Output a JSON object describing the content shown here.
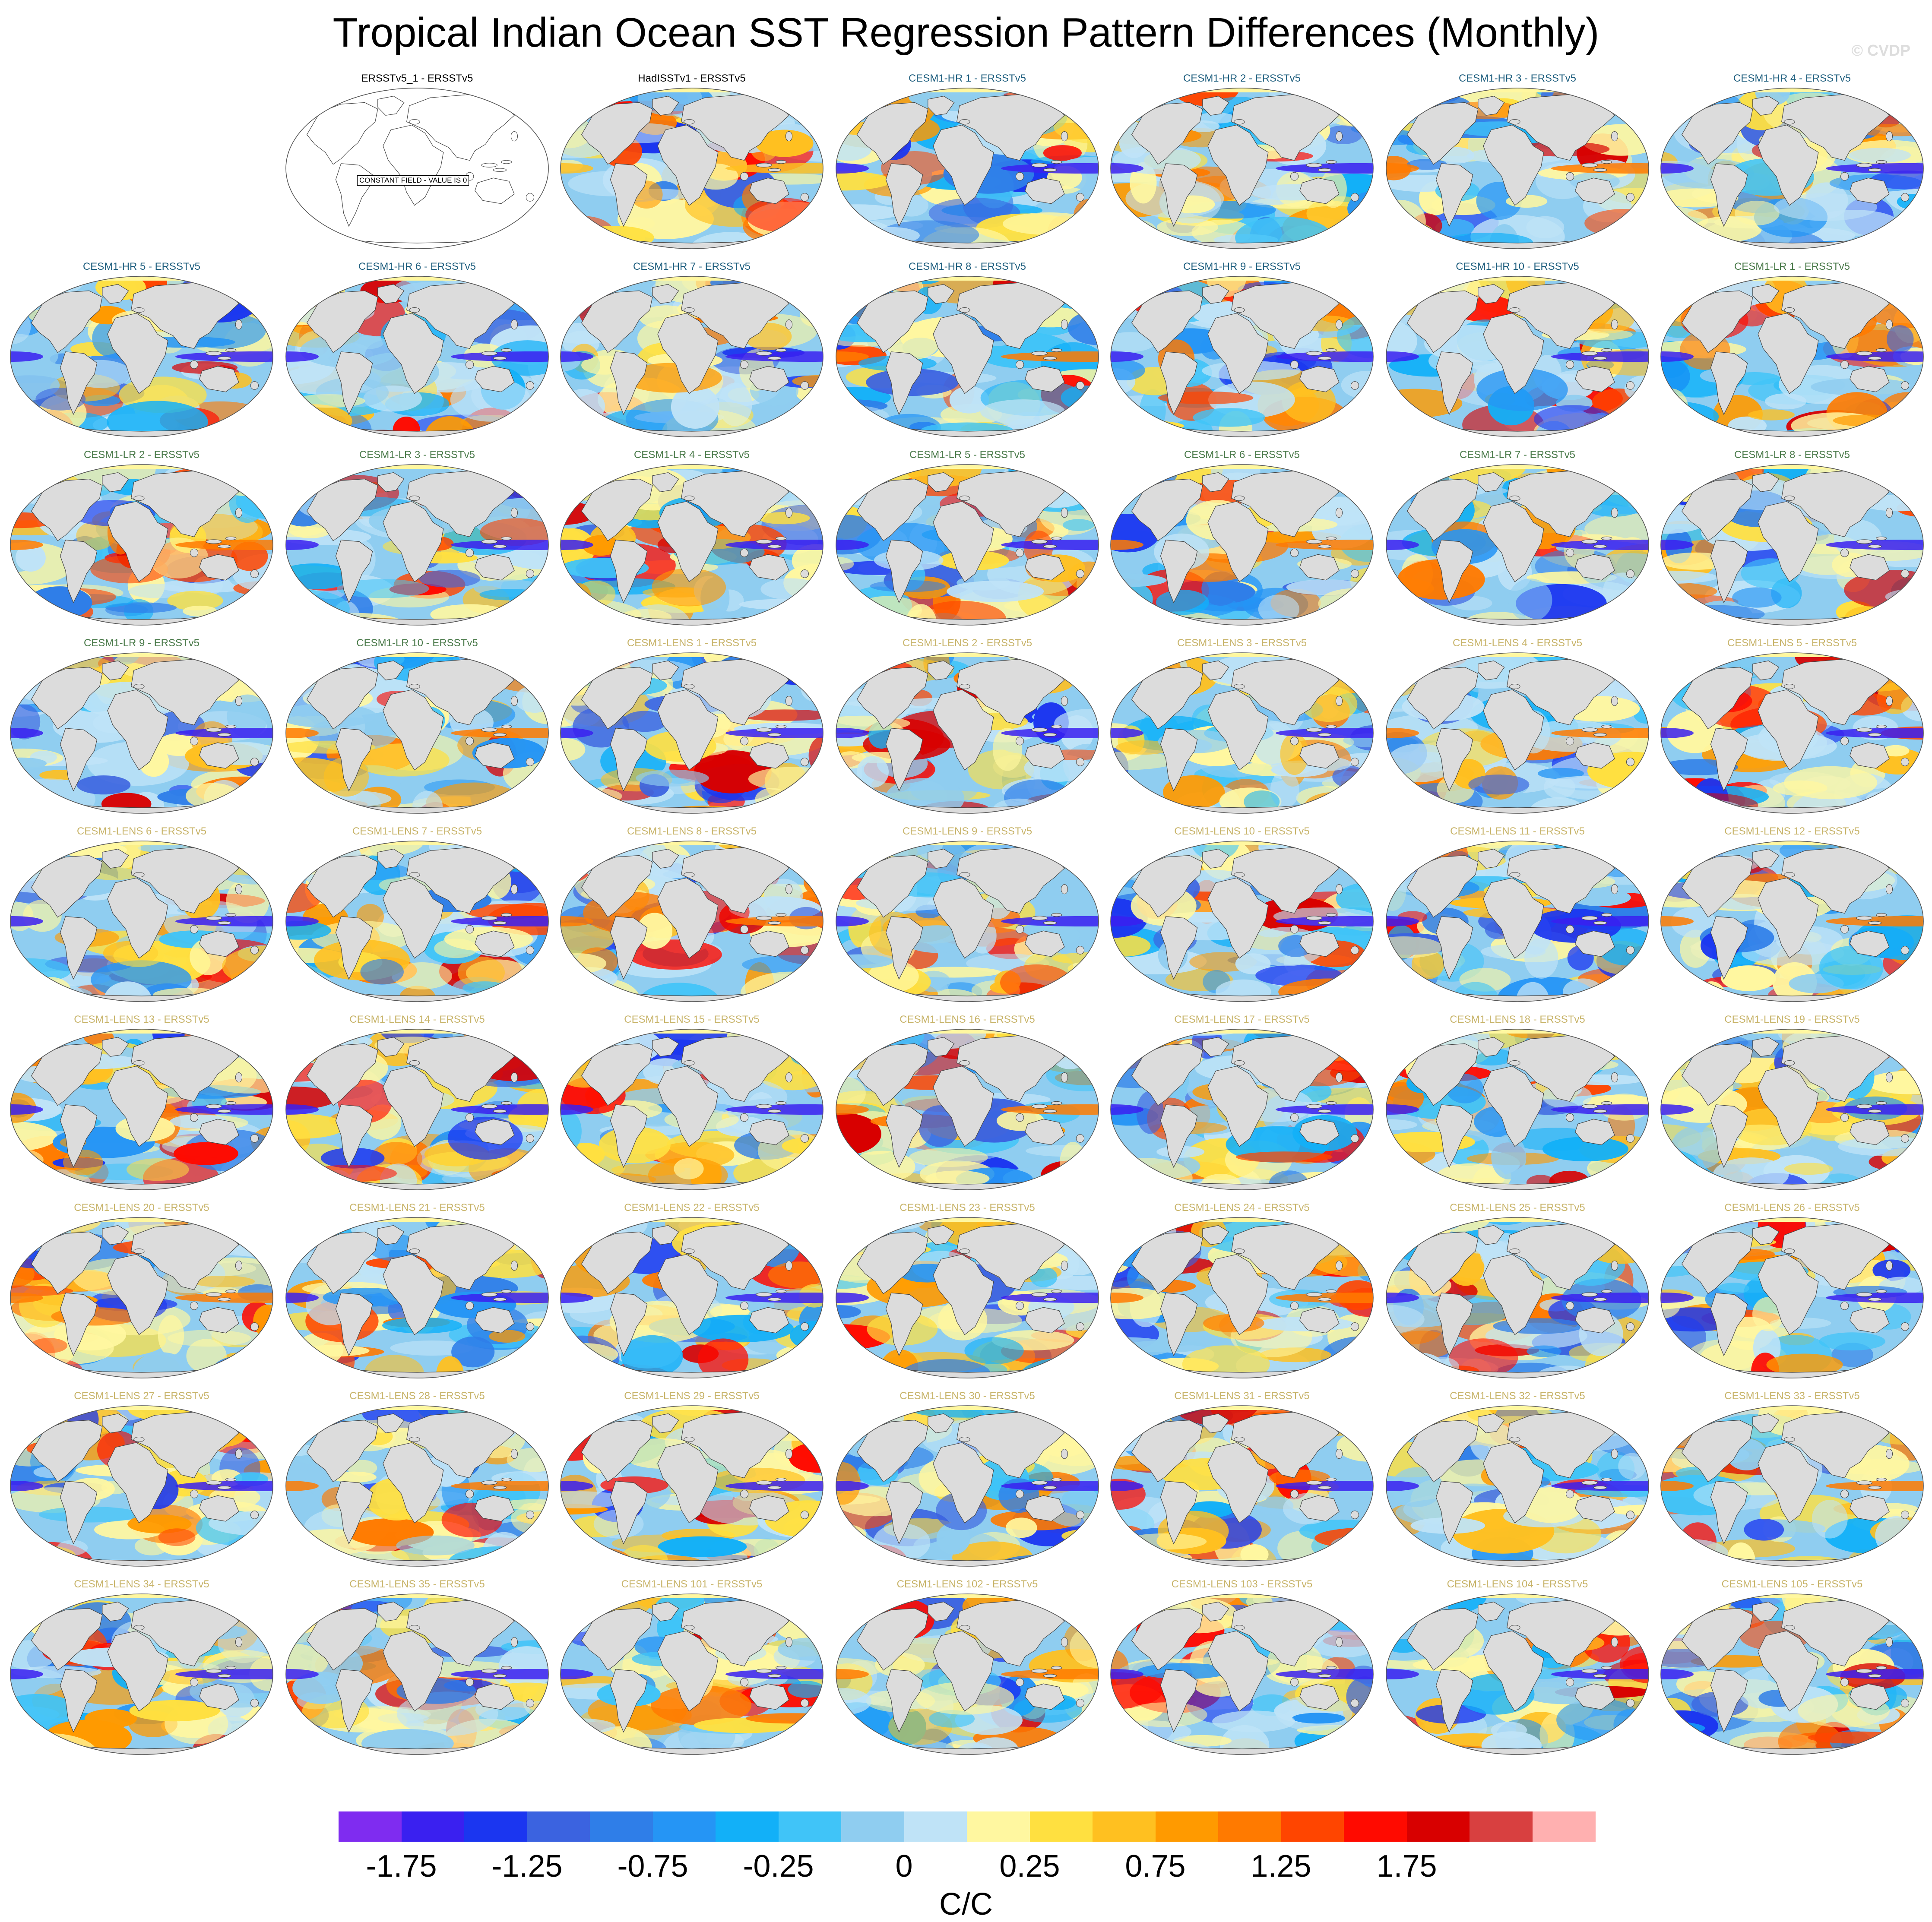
{
  "title": "Tropical Indian Ocean SST Regression Pattern Differences (Monthly)",
  "watermark": "© CVDP",
  "colors": {
    "obs_title": "#000000",
    "hr_title": "#1f5f7f",
    "lr_title": "#4a7a4a",
    "lens_title": "#c8b46a",
    "land": "#dcdcdc",
    "constant_field_bg": "#ffffff"
  },
  "colorbar": {
    "label": "C/C",
    "colors": [
      "#7f2cf0",
      "#3a20f0",
      "#1b36f0",
      "#3b63e0",
      "#2f7ee8",
      "#2595f5",
      "#12b0f8",
      "#40c4f8",
      "#8fcdf0",
      "#bfe3f7",
      "#fff7a0",
      "#ffe040",
      "#ffc020",
      "#ff9a00",
      "#ff7a00",
      "#ff4500",
      "#ff0a00",
      "#d80000",
      "#d84040",
      "#ffb0b0"
    ],
    "tick_labels": [
      "-1.75",
      "-1.25",
      "-0.75",
      "-0.25",
      "0",
      "0.25",
      "0.75",
      "1.25",
      "1.75"
    ],
    "tick_boundary_index": [
      1,
      3,
      5,
      7,
      9,
      11,
      13,
      15,
      17
    ]
  },
  "panels": [
    {
      "label": "ERSSTv5_1 - ERSSTv5",
      "group": "obs",
      "constant": true,
      "note": "CONSTANT FIELD - VALUE IS 0"
    },
    {
      "label": "HadISSTv1 - ERSSTv5",
      "group": "obs"
    },
    {
      "label": "CESM1-HR 1 - ERSSTv5",
      "group": "hr"
    },
    {
      "label": "CESM1-HR 2 - ERSSTv5",
      "group": "hr"
    },
    {
      "label": "CESM1-HR 3 - ERSSTv5",
      "group": "hr"
    },
    {
      "label": "CESM1-HR 4 - ERSSTv5",
      "group": "hr"
    },
    {
      "label": "CESM1-HR 5 - ERSSTv5",
      "group": "hr"
    },
    {
      "label": "CESM1-HR 6 - ERSSTv5",
      "group": "hr"
    },
    {
      "label": "CESM1-HR 7 - ERSSTv5",
      "group": "hr"
    },
    {
      "label": "CESM1-HR 8 - ERSSTv5",
      "group": "hr"
    },
    {
      "label": "CESM1-HR 9 - ERSSTv5",
      "group": "hr"
    },
    {
      "label": "CESM1-HR 10 - ERSSTv5",
      "group": "hr"
    },
    {
      "label": "CESM1-LR 1 - ERSSTv5",
      "group": "lr"
    },
    {
      "label": "CESM1-LR 2 - ERSSTv5",
      "group": "lr"
    },
    {
      "label": "CESM1-LR 3 - ERSSTv5",
      "group": "lr"
    },
    {
      "label": "CESM1-LR 4 - ERSSTv5",
      "group": "lr"
    },
    {
      "label": "CESM1-LR 5 - ERSSTv5",
      "group": "lr"
    },
    {
      "label": "CESM1-LR 6 - ERSSTv5",
      "group": "lr"
    },
    {
      "label": "CESM1-LR 7 - ERSSTv5",
      "group": "lr"
    },
    {
      "label": "CESM1-LR 8 - ERSSTv5",
      "group": "lr"
    },
    {
      "label": "CESM1-LR 9 - ERSSTv5",
      "group": "lr"
    },
    {
      "label": "CESM1-LR 10 - ERSSTv5",
      "group": "lr"
    },
    {
      "label": "CESM1-LENS 1 - ERSSTv5",
      "group": "lens"
    },
    {
      "label": "CESM1-LENS 2 - ERSSTv5",
      "group": "lens"
    },
    {
      "label": "CESM1-LENS 3 - ERSSTv5",
      "group": "lens"
    },
    {
      "label": "CESM1-LENS 4 - ERSSTv5",
      "group": "lens"
    },
    {
      "label": "CESM1-LENS 5 - ERSSTv5",
      "group": "lens"
    },
    {
      "label": "CESM1-LENS 6 - ERSSTv5",
      "group": "lens"
    },
    {
      "label": "CESM1-LENS 7 - ERSSTv5",
      "group": "lens"
    },
    {
      "label": "CESM1-LENS 8 - ERSSTv5",
      "group": "lens"
    },
    {
      "label": "CESM1-LENS 9 - ERSSTv5",
      "group": "lens"
    },
    {
      "label": "CESM1-LENS 10 - ERSSTv5",
      "group": "lens"
    },
    {
      "label": "CESM1-LENS 11 - ERSSTv5",
      "group": "lens"
    },
    {
      "label": "CESM1-LENS 12 - ERSSTv5",
      "group": "lens"
    },
    {
      "label": "CESM1-LENS 13 - ERSSTv5",
      "group": "lens"
    },
    {
      "label": "CESM1-LENS 14 - ERSSTv5",
      "group": "lens"
    },
    {
      "label": "CESM1-LENS 15 - ERSSTv5",
      "group": "lens"
    },
    {
      "label": "CESM1-LENS 16 - ERSSTv5",
      "group": "lens"
    },
    {
      "label": "CESM1-LENS 17 - ERSSTv5",
      "group": "lens"
    },
    {
      "label": "CESM1-LENS 18 - ERSSTv5",
      "group": "lens"
    },
    {
      "label": "CESM1-LENS 19 - ERSSTv5",
      "group": "lens"
    },
    {
      "label": "CESM1-LENS 20 - ERSSTv5",
      "group": "lens"
    },
    {
      "label": "CESM1-LENS 21 - ERSSTv5",
      "group": "lens"
    },
    {
      "label": "CESM1-LENS 22 - ERSSTv5",
      "group": "lens"
    },
    {
      "label": "CESM1-LENS 23 - ERSSTv5",
      "group": "lens"
    },
    {
      "label": "CESM1-LENS 24 - ERSSTv5",
      "group": "lens"
    },
    {
      "label": "CESM1-LENS 25 - ERSSTv5",
      "group": "lens"
    },
    {
      "label": "CESM1-LENS 26 - ERSSTv5",
      "group": "lens"
    },
    {
      "label": "CESM1-LENS 27 - ERSSTv5",
      "group": "lens"
    },
    {
      "label": "CESM1-LENS 28 - ERSSTv5",
      "group": "lens"
    },
    {
      "label": "CESM1-LENS 29 - ERSSTv5",
      "group": "lens"
    },
    {
      "label": "CESM1-LENS 30 - ERSSTv5",
      "group": "lens"
    },
    {
      "label": "CESM1-LENS 31 - ERSSTv5",
      "group": "lens"
    },
    {
      "label": "CESM1-LENS 32 - ERSSTv5",
      "group": "lens"
    },
    {
      "label": "CESM1-LENS 33 - ERSSTv5",
      "group": "lens"
    },
    {
      "label": "CESM1-LENS 34 - ERSSTv5",
      "group": "lens"
    },
    {
      "label": "CESM1-LENS 35 - ERSSTv5",
      "group": "lens"
    },
    {
      "label": "CESM1-LENS 101 - ERSSTv5",
      "group": "lens"
    },
    {
      "label": "CESM1-LENS 102 - ERSSTv5",
      "group": "lens"
    },
    {
      "label": "CESM1-LENS 103 - ERSSTv5",
      "group": "lens"
    },
    {
      "label": "CESM1-LENS 104 - ERSSTv5",
      "group": "lens"
    },
    {
      "label": "CESM1-LENS 105 - ERSSTv5",
      "group": "lens"
    }
  ]
}
